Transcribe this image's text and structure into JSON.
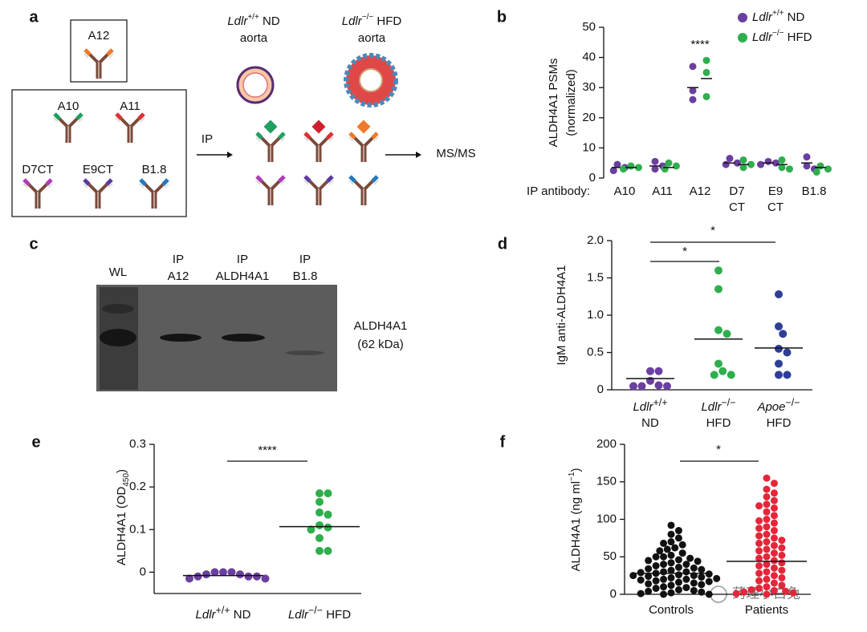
{
  "panel_a": {
    "letter": "a",
    "antibodies": {
      "a12": "A12",
      "a10": "A10",
      "a11": "A11",
      "d7ct": "D7CT",
      "e9ct": "E9CT",
      "b18": "B1.8"
    },
    "aorta_nd": {
      "label": "Ldlr+/+ ND",
      "tissue": "aorta"
    },
    "aorta_hfd": {
      "label": "Ldlr−/− HFD",
      "tissue": "aorta"
    },
    "ip": "IP",
    "ms": "MS/MS"
  },
  "panel_c": {
    "letter": "c",
    "lanes": [
      [
        "WL"
      ],
      [
        "IP",
        "A12"
      ],
      [
        "IP",
        "ALDH4A1"
      ],
      [
        "IP",
        "B1.8"
      ]
    ],
    "band_label": [
      "ALDH4A1",
      "(62 kDa)"
    ]
  },
  "watermark": "药理小白兔",
  "chart_data": [
    {
      "type": "dot",
      "letter": "b",
      "ylabel": [
        "ALDH4A1 PSMs",
        "(normalized)"
      ],
      "xlabel": "IP antibody:",
      "categories": [
        "A10",
        "A11",
        "A12",
        "D7\nCT",
        "E9\nCT",
        "B1.8"
      ],
      "series": [
        {
          "name": "Ldlr+/+ ND",
          "color": "#6b3fa0",
          "values": [
            [
              2.5,
              3.5,
              4.5
            ],
            [
              3,
              4,
              5.5
            ],
            [
              26,
              29,
              37
            ],
            [
              4.5,
              5,
              6.5
            ],
            [
              4.5,
              5,
              5.5
            ],
            [
              3,
              4,
              7
            ]
          ],
          "means": [
            3.5,
            4,
            30,
            5,
            5,
            5
          ]
        },
        {
          "name": "Ldlr−/− HFD",
          "color": "#2fae4e",
          "values": [
            [
              3,
              3.5,
              4
            ],
            [
              3,
              4,
              5
            ],
            [
              27,
              35,
              39
            ],
            [
              3.5,
              4.5,
              6
            ],
            [
              3,
              3.5,
              6
            ],
            [
              2,
              3,
              4
            ]
          ],
          "means": [
            3.5,
            3.5,
            33,
            4.5,
            4.5,
            3.5
          ]
        }
      ],
      "annotations": [
        "****"
      ],
      "ylim": [
        0,
        50
      ],
      "yticks": [
        0,
        10,
        20,
        30,
        40,
        50
      ],
      "legend": "upper right"
    },
    {
      "type": "dot",
      "letter": "d",
      "ylabel": "IgM anti-ALDH4A1",
      "categories": [
        "Ldlr+/+\nND",
        "Ldlr−/−\nHFD",
        "Apoe−/−\nHFD"
      ],
      "colors": [
        "#6b3fa0",
        "#2fae4e",
        "#2e3f95"
      ],
      "values": [
        [
          0.25,
          0.25,
          0.12,
          0.05,
          0.05,
          0.05,
          0.06
        ],
        [
          1.6,
          1.35,
          0.8,
          0.75,
          0.35,
          0.25,
          0.2,
          0.2
        ],
        [
          1.28,
          0.85,
          0.75,
          0.55,
          0.5,
          0.35,
          0.2,
          0.2
        ]
      ],
      "means": [
        0.15,
        0.68,
        0.56
      ],
      "annotations": [
        "*",
        "*"
      ],
      "ylim": [
        0,
        2
      ],
      "yticks": [
        0,
        0.5,
        {
          "value": 1,
          "label": "1.0"
        },
        1.5,
        {
          "value": 2,
          "label": "2.0"
        }
      ]
    },
    {
      "type": "dot",
      "letter": "e",
      "ylabel": "ALDH4A1 (OD450)",
      "categories": [
        "Ldlr+/+ ND",
        "Ldlr−/− HFD"
      ],
      "colors": [
        "#6b3fa0",
        "#2fae4e"
      ],
      "values": [
        [
          0,
          0,
          0,
          -0.005,
          -0.01,
          -0.01,
          -0.01,
          -0.015,
          -0.015,
          -0.005
        ],
        [
          0.185,
          0.185,
          0.165,
          0.14,
          0.135,
          0.11,
          0.105,
          0.1,
          0.08,
          0.05,
          0.05
        ]
      ],
      "means": [
        -0.008,
        0.107
      ],
      "annotations": [
        "****"
      ],
      "ylim": [
        -0.05,
        0.3
      ],
      "yticks": [
        0,
        0.1,
        0.2,
        0.3
      ]
    },
    {
      "type": "dot",
      "letter": "f",
      "ylabel": "ALDH4A1 (ng ml−1)",
      "categories": [
        "Controls",
        "Patients"
      ],
      "colors": [
        "#111111",
        "#e3263a"
      ],
      "values": [
        [
          92,
          85,
          80,
          75,
          70,
          68,
          66,
          62,
          60,
          58,
          55,
          52,
          50,
          50,
          48,
          46,
          45,
          44,
          42,
          40,
          40,
          38,
          36,
          35,
          34,
          33,
          32,
          30,
          30,
          29,
          28,
          27,
          26,
          25,
          25,
          24,
          23,
          22,
          21,
          20,
          20,
          19,
          18,
          17,
          16,
          15,
          14,
          13,
          12,
          10,
          9,
          8,
          6,
          5,
          4,
          3,
          2,
          1,
          0,
          0
        ],
        [
          155,
          148,
          140,
          135,
          130,
          125,
          120,
          118,
          115,
          110,
          105,
          100,
          98,
          95,
          90,
          88,
          85,
          80,
          78,
          75,
          72,
          70,
          68,
          65,
          62,
          60,
          58,
          55,
          52,
          50,
          48,
          45,
          42,
          40,
          38,
          35,
          32,
          30,
          28,
          25,
          22,
          20,
          18,
          15,
          12,
          10,
          8,
          6,
          5,
          4,
          3,
          2,
          1,
          0
        ]
      ],
      "means": [
        28,
        44
      ],
      "annotations": [
        "*"
      ],
      "ylim": [
        0,
        200
      ],
      "yticks": [
        0,
        50,
        100,
        150,
        200
      ]
    }
  ]
}
